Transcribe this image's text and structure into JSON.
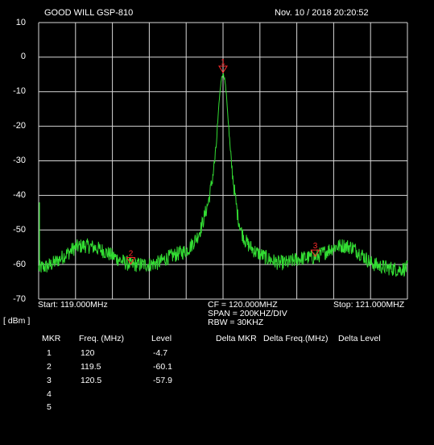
{
  "header": {
    "instrument": "GOOD WILL GSP-810",
    "datetime": "Nov. 10 / 2018  20:20:52"
  },
  "y_axis": {
    "ticks": [
      "10",
      "0",
      "-10",
      "-20",
      "-30",
      "-40",
      "-50",
      "-60",
      "-70"
    ],
    "unit": "[ dBm ]"
  },
  "bottom": {
    "start": "Start:  119.000MHz",
    "cf": "CF = 120.000MHZ",
    "span": "SPAN = 200KHZ/DIV",
    "rbw": "RBW = 30KHZ",
    "stop": "Stop:  121.000MHZ"
  },
  "marker_table": {
    "headers": [
      "MKR",
      "Freq. (MHz)",
      "Level",
      "Delta MKR",
      "Delta Freq.(MHz)",
      "Delta Level"
    ],
    "rows": [
      {
        "mkr": "1",
        "freq": "120",
        "level": "-4.7"
      },
      {
        "mkr": "2",
        "freq": "119.5",
        "level": "-60.1"
      },
      {
        "mkr": "3",
        "freq": "120.5",
        "level": "-57.9"
      },
      {
        "mkr": "4",
        "freq": "",
        "level": ""
      },
      {
        "mkr": "5",
        "freq": "",
        "level": ""
      }
    ]
  },
  "chart_data": {
    "type": "line",
    "x_start_mhz": 119.0,
    "x_stop_mhz": 121.0,
    "ylim": [
      -70,
      10
    ],
    "grid": true,
    "series": [
      {
        "color": "#33dd33",
        "x": [
          119.0,
          119.05,
          119.1,
          119.15,
          119.2,
          119.25,
          119.3,
          119.35,
          119.4,
          119.45,
          119.5,
          119.55,
          119.6,
          119.65,
          119.7,
          119.75,
          119.8,
          119.82,
          119.84,
          119.86,
          119.88,
          119.9,
          119.92,
          119.94,
          119.96,
          119.97,
          119.98,
          119.99,
          120.0,
          120.01,
          120.02,
          120.03,
          120.04,
          120.06,
          120.08,
          120.1,
          120.12,
          120.14,
          120.16,
          120.18,
          120.2,
          120.25,
          120.3,
          120.35,
          120.4,
          120.45,
          120.5,
          120.55,
          120.6,
          120.65,
          120.7,
          120.75,
          120.8,
          120.85,
          120.9,
          120.95,
          121.0
        ],
        "y": [
          -61,
          -60.5,
          -59,
          -57,
          -55,
          -54.5,
          -55,
          -56,
          -57.5,
          -59,
          -60.1,
          -60,
          -60,
          -59.5,
          -58,
          -57,
          -56,
          -55,
          -53.5,
          -52,
          -49.5,
          -46,
          -42,
          -36,
          -28,
          -20,
          -12,
          -6.5,
          -4.7,
          -6.5,
          -12,
          -20,
          -28,
          -38,
          -46,
          -50.5,
          -53,
          -54.5,
          -55.5,
          -56.5,
          -57,
          -58.5,
          -59.5,
          -59.5,
          -58.5,
          -58,
          -57.9,
          -56.5,
          -55,
          -54.5,
          -55,
          -57,
          -59.5,
          -60.5,
          -61,
          -61.5,
          -61
        ]
      }
    ],
    "markers": [
      {
        "label": "1",
        "freq": 120.0,
        "level": -4.7
      },
      {
        "label": "2",
        "freq": 119.5,
        "level": -60.1
      },
      {
        "label": "3",
        "freq": 120.5,
        "level": -57.9
      }
    ]
  }
}
